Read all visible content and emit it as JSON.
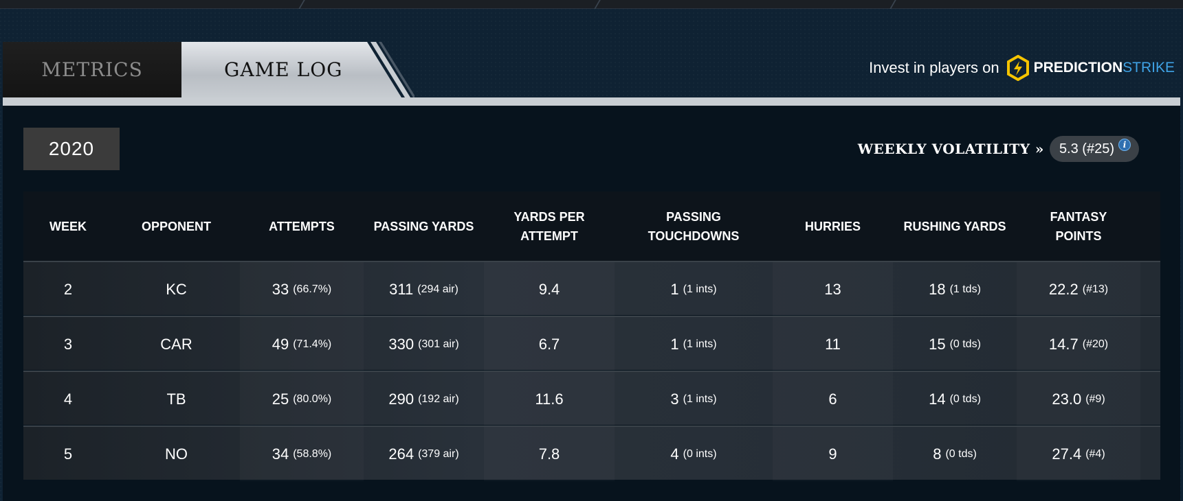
{
  "tabs": [
    {
      "label": "METRICS",
      "active": false
    },
    {
      "label": "GAME LOG",
      "active": true
    }
  ],
  "promo": {
    "text": "Invest in players on",
    "brand_part1": "PREDICTION",
    "brand_part2": "STRIKE",
    "icon": "lightning-hexagon-icon",
    "colors": {
      "logo_yellow": "#f5c400",
      "brand_blue": "#3fa3e6"
    }
  },
  "season": {
    "year": "2020"
  },
  "volatility": {
    "label": "WEEKLY VOLATILITY »",
    "value": "5.3 (#25)",
    "info_icon": "i"
  },
  "table": {
    "headers": [
      "WEEK",
      "OPPONENT",
      "ATTEMPTS",
      "PASSING YARDS",
      "YARDS PER\nATTEMPT",
      "PASSING\nTOUCHDOWNS",
      "HURRIES",
      "RUSHING YARDS",
      "FANTASY\nPOINTS"
    ],
    "rows": [
      {
        "week": "2",
        "opponent": "KC",
        "attempts": "33",
        "attempts_sub": "(66.7%)",
        "passing_yards": "311",
        "passing_yards_sub": "(294 air)",
        "ypa": "9.4",
        "passing_td": "1",
        "passing_td_sub": "(1 ints)",
        "hurries": "13",
        "rushing_yards": "18",
        "rushing_yards_sub": "(1 tds)",
        "fantasy": "22.2",
        "fantasy_sub": "(#13)"
      },
      {
        "week": "3",
        "opponent": "CAR",
        "attempts": "49",
        "attempts_sub": "(71.4%)",
        "passing_yards": "330",
        "passing_yards_sub": "(301 air)",
        "ypa": "6.7",
        "passing_td": "1",
        "passing_td_sub": "(1 ints)",
        "hurries": "11",
        "rushing_yards": "15",
        "rushing_yards_sub": "(0 tds)",
        "fantasy": "14.7",
        "fantasy_sub": "(#20)"
      },
      {
        "week": "4",
        "opponent": "TB",
        "attempts": "25",
        "attempts_sub": "(80.0%)",
        "passing_yards": "290",
        "passing_yards_sub": "(192 air)",
        "ypa": "11.6",
        "passing_td": "3",
        "passing_td_sub": "(1 ints)",
        "hurries": "6",
        "rushing_yards": "14",
        "rushing_yards_sub": "(0 tds)",
        "fantasy": "23.0",
        "fantasy_sub": "(#9)"
      },
      {
        "week": "5",
        "opponent": "NO",
        "attempts": "34",
        "attempts_sub": "(58.8%)",
        "passing_yards": "264",
        "passing_yards_sub": "(379 air)",
        "ypa": "7.8",
        "passing_td": "4",
        "passing_td_sub": "(0 ints)",
        "hurries": "9",
        "rushing_yards": "8",
        "rushing_yards_sub": "(0 tds)",
        "fantasy": "27.4",
        "fantasy_sub": "(#4)"
      }
    ]
  }
}
